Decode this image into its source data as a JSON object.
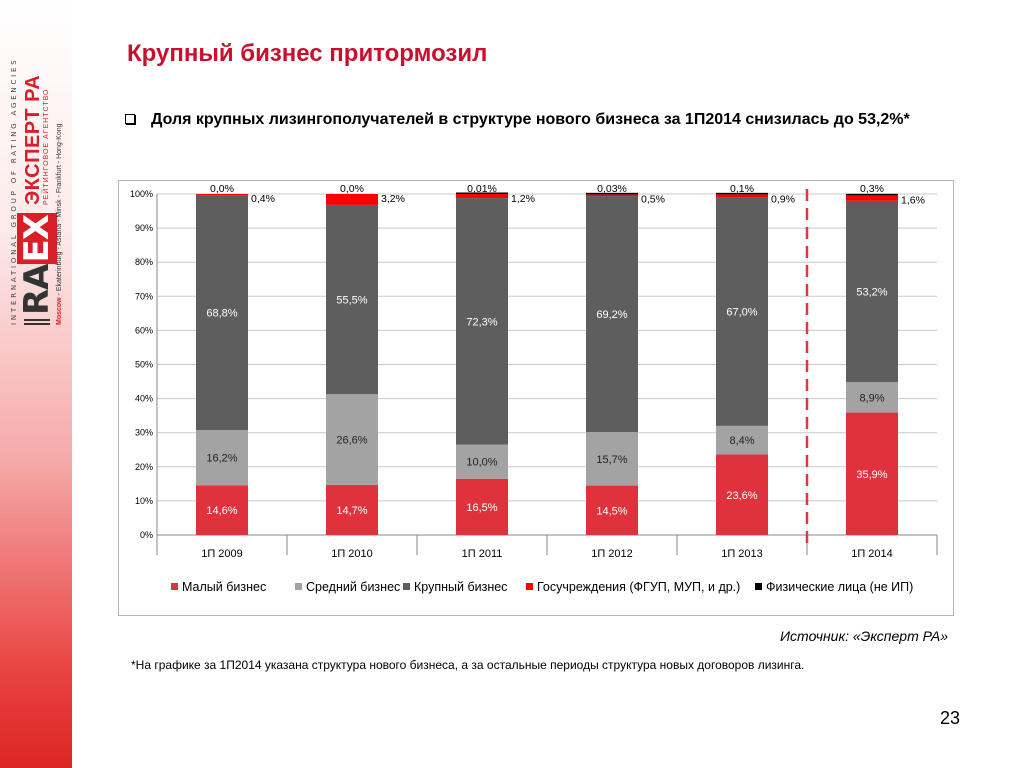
{
  "logo": {
    "tagline": "INTERNATIONAL GROUP OF RATING AGENCIES",
    "brand_left": "RA",
    "brand_ex": "EX",
    "brand_right": "ЭКСПЕРТ РА",
    "brand_sub": "РЕЙТИНГОВОЕ АГЕНТСТВО",
    "cities_first": "Moscow",
    "cities_rest": " - Ekaterinburg - Astana - Minsk - Frankfurt - Hong-Kong"
  },
  "slide": {
    "title": "Крупный бизнес притормозил",
    "bullet": "Доля крупных лизингополучателей в структуре нового бизнеса за 1П2014 снизилась до 53,2%*",
    "source": "Источник: «Эксперт РА»",
    "footnote": "*На графике за 1П2014 указана структура нового бизнеса, а за остальные периоды структура новых договоров лизинга.",
    "page_number": "23"
  },
  "chart_data": {
    "type": "bar",
    "stacked": true,
    "normalized": true,
    "categories": [
      "1П 2009",
      "1П 2010",
      "1П 2011",
      "1П 2012",
      "1П 2013",
      "1П 2014"
    ],
    "yticks": [
      "0%",
      "10%",
      "20%",
      "30%",
      "40%",
      "50%",
      "60%",
      "70%",
      "80%",
      "90%",
      "100%"
    ],
    "ylim": [
      0,
      100
    ],
    "grid": true,
    "legend_position": "bottom",
    "divider_between": [
      "1П 2013",
      "1П 2014"
    ],
    "series": [
      {
        "name": "Малый бизнес",
        "color": "#e0323c",
        "values": [
          14.6,
          14.7,
          16.5,
          14.5,
          23.6,
          35.9
        ],
        "labels": [
          "14,6%",
          "14,7%",
          "16,5%",
          "14,5%",
          "23,6%",
          "35,9%"
        ]
      },
      {
        "name": "Средний бизнес",
        "color": "#a3a3a3",
        "values": [
          16.2,
          26.6,
          10.0,
          15.7,
          8.4,
          8.9
        ],
        "labels": [
          "16,2%",
          "26,6%",
          "10,0%",
          "15,7%",
          "8,4%",
          "8,9%"
        ]
      },
      {
        "name": "Крупный бизнес",
        "color": "#5e5e5e",
        "values": [
          68.8,
          55.5,
          72.3,
          69.2,
          67.0,
          53.2
        ],
        "labels": [
          "68,8%",
          "55,5%",
          "72,3%",
          "69,2%",
          "67,0%",
          "53,2%"
        ]
      },
      {
        "name": "Госучреждения (ФГУП, МУП, и др.)",
        "color": "#ff0000",
        "values": [
          0.4,
          3.2,
          1.2,
          0.5,
          0.9,
          1.6
        ],
        "labels": [
          "0,4%",
          "3,2%",
          "1,2%",
          "0,5%",
          "0,9%",
          "1,6%"
        ]
      },
      {
        "name": "Физические лица (не ИП)",
        "color": "#000000",
        "values": [
          0.0,
          0.0,
          0.01,
          0.03,
          0.1,
          0.3
        ],
        "labels": [
          "0,0%",
          "0,0%",
          "0,01%",
          "0,03%",
          "0,1%",
          "0,3%"
        ]
      }
    ]
  }
}
